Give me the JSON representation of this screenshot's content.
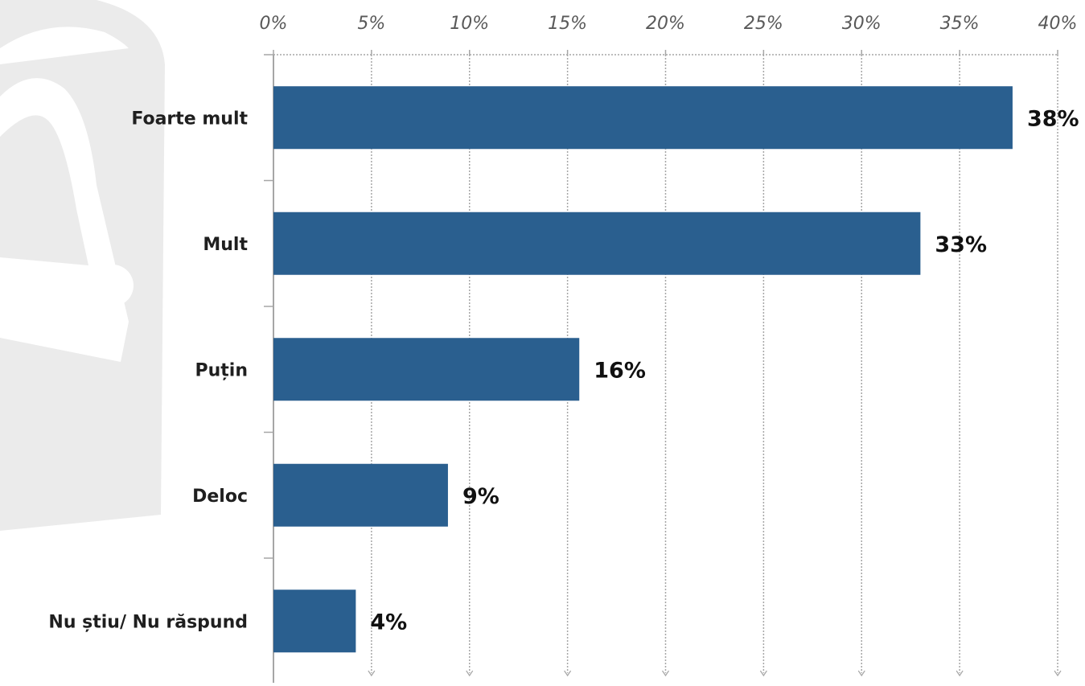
{
  "chart_data": {
    "type": "bar",
    "orientation": "horizontal",
    "categories": [
      "Foarte mult",
      "Mult",
      "Puțin",
      "Deloc",
      "Nu știu/ Nu răspund"
    ],
    "values": [
      37.7,
      33.0,
      15.6,
      8.9,
      4.2
    ],
    "data_labels": [
      "38%",
      "33%",
      "16%",
      "9%",
      "4%"
    ],
    "x_ticks": [
      "0%",
      "5%",
      "10%",
      "15%",
      "20%",
      "25%",
      "30%",
      "35%",
      "40%"
    ],
    "xlim": [
      0,
      40
    ],
    "x_axis_position": "top",
    "grid": true,
    "legend": "none",
    "title": "",
    "xlabel": "",
    "ylabel": "",
    "colors": {
      "bar": "#2a5f8f",
      "grid": "#a6a6a6",
      "axis": "#a6a6a6",
      "watermark": "#ebebeb"
    }
  }
}
